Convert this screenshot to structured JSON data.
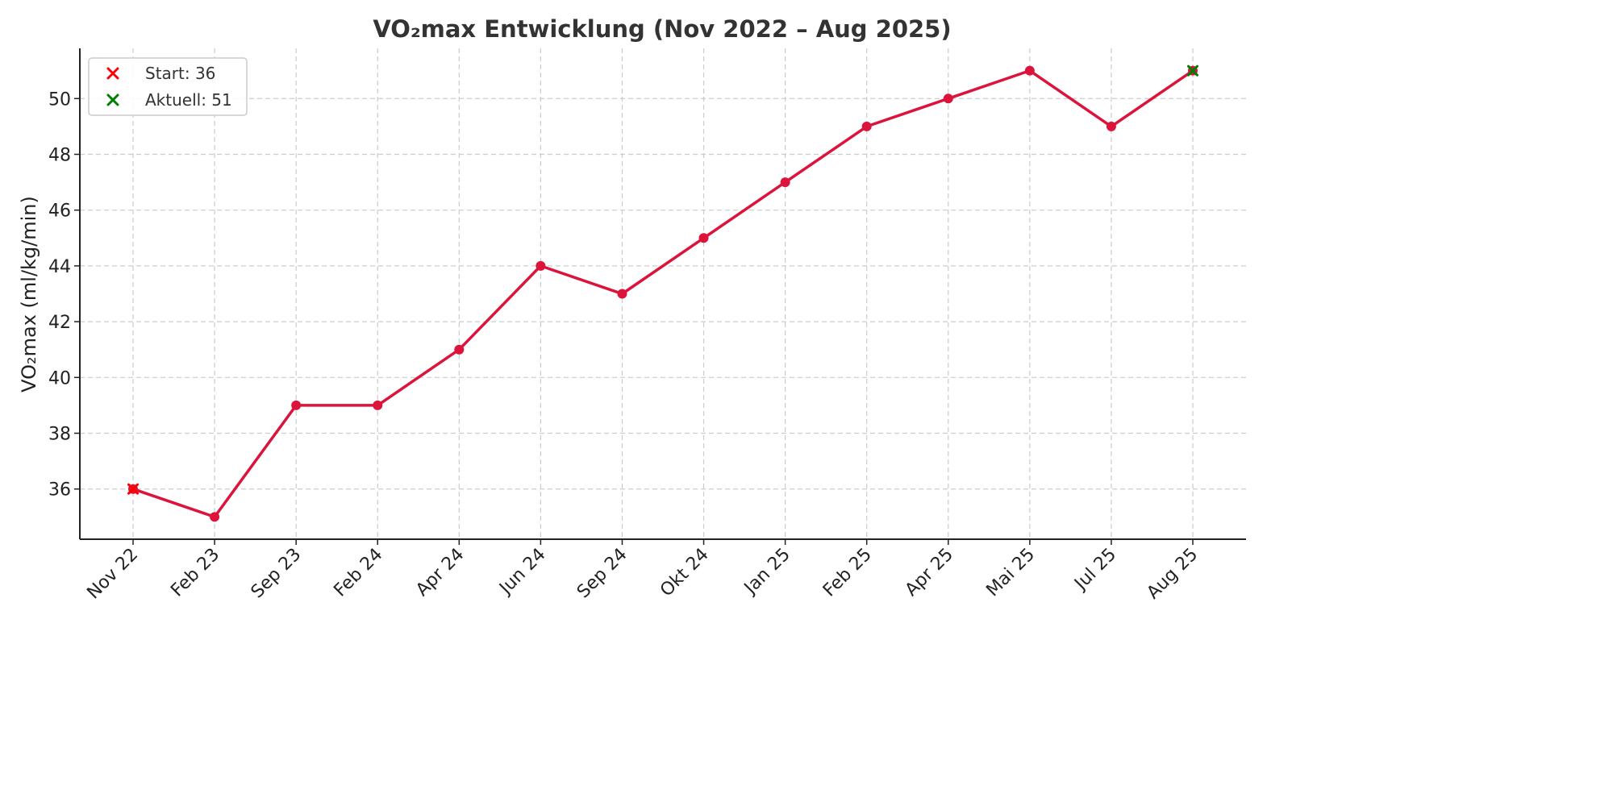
{
  "chart_data": {
    "type": "line",
    "title": "VO₂max Entwicklung (Nov 2022 – Aug 2025)",
    "xlabel": "",
    "ylabel": "VO₂max (ml/kg/min)",
    "categories": [
      "Nov 22",
      "Feb 23",
      "Sep 23",
      "Feb 24",
      "Apr 24",
      "Jun 24",
      "Sep 24",
      "Okt 24",
      "Jan 25",
      "Feb 25",
      "Apr 25",
      "Mai 25",
      "Jul 25",
      "Aug 25"
    ],
    "series": [
      {
        "values": [
          36,
          35,
          39,
          39,
          41,
          44,
          43,
          45,
          47,
          49,
          50,
          51,
          49,
          51
        ],
        "color": "#dc143c",
        "marker": "circle"
      }
    ],
    "highlights": [
      {
        "label": "Start: 36",
        "category": "Nov 22",
        "value": 36,
        "color": "#ff0000",
        "marker": "x"
      },
      {
        "label": "Aktuell: 51",
        "category": "Aug 25",
        "value": 51,
        "color": "#008000",
        "marker": "x"
      }
    ],
    "ylim": [
      34.2,
      51.8
    ],
    "yticks": [
      36,
      38,
      40,
      42,
      44,
      46,
      48,
      50
    ],
    "grid": true,
    "legend_position": "top-left"
  }
}
